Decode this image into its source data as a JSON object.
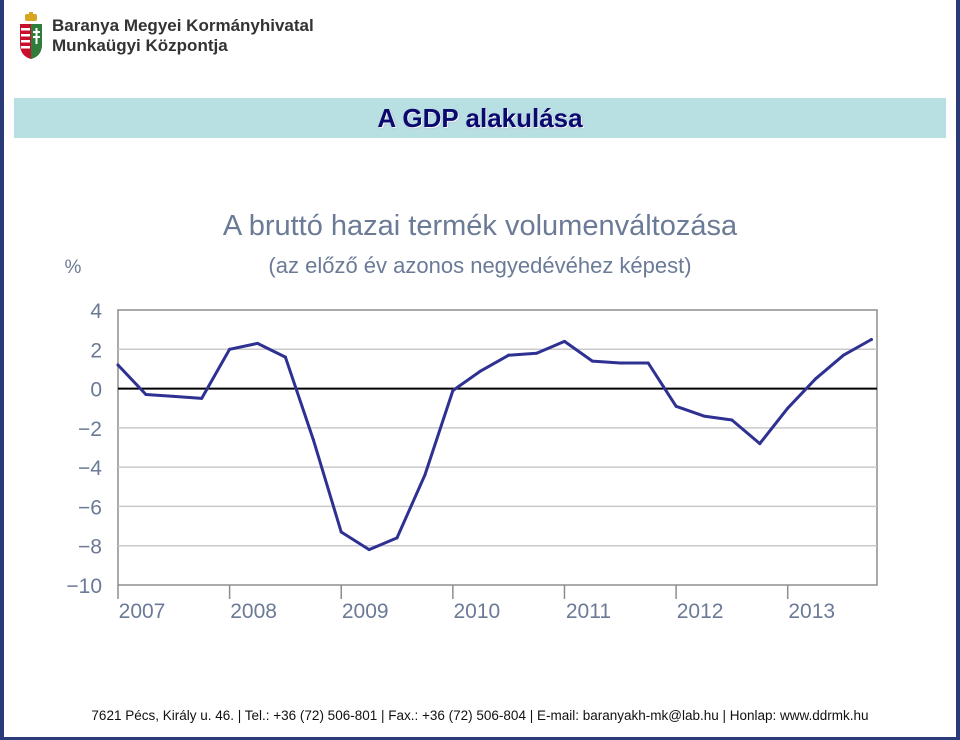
{
  "header": {
    "org_line1": "Baranya Megyei Kormányhivatal",
    "org_line2": "Munkaügyi Központja"
  },
  "slide": {
    "title": "A GDP alakulása"
  },
  "footer": {
    "contact": "7621 Pécs, Király u. 46. | Tel.: +36 (72) 506-801 | Fax.: +36 (72) 506-804 | E-mail: baranyakh-mk@lab.hu | Honlap: www.ddrmk.hu"
  },
  "colors": {
    "series_line": "#2e3192",
    "banner": "#b8e0e3",
    "title_text": "#0a0a6e",
    "frame": "#2b3a78",
    "chart_text": "#6b7a96"
  },
  "chart_data": {
    "type": "line",
    "title": "A bruttó hazai termék volumenváltozása",
    "subtitle": "(az előző év azonos negyedévéhez képest)",
    "ylabel": "%",
    "xlabel": "",
    "ylim": [
      -10,
      4
    ],
    "yticks": [
      4,
      2,
      0,
      -2,
      -4,
      -6,
      -8,
      -10
    ],
    "xlim": [
      2007,
      2013.8
    ],
    "xticks": [
      "2007",
      "2008",
      "2009",
      "2010",
      "2011",
      "2012",
      "2013"
    ],
    "grid": true,
    "x": [
      "2007 Q1",
      "2007 Q2",
      "2007 Q3",
      "2007 Q4",
      "2008 Q1",
      "2008 Q2",
      "2008 Q3",
      "2008 Q4",
      "2009 Q1",
      "2009 Q2",
      "2009 Q3",
      "2009 Q4",
      "2010 Q1",
      "2010 Q2",
      "2010 Q3",
      "2010 Q4",
      "2011 Q1",
      "2011 Q2",
      "2011 Q3",
      "2011 Q4",
      "2012 Q1",
      "2012 Q2",
      "2012 Q3",
      "2012 Q4",
      "2013 Q1",
      "2013 Q2",
      "2013 Q3",
      "2013 Q4"
    ],
    "series": [
      {
        "values": [
          1.2,
          -0.3,
          -0.4,
          -0.5,
          2.0,
          2.3,
          1.6,
          -2.6,
          -7.3,
          -8.2,
          -7.6,
          -4.4,
          -0.1,
          0.9,
          1.7,
          1.8,
          2.4,
          1.4,
          1.3,
          1.3,
          -0.9,
          -1.4,
          -1.6,
          -2.8,
          -1.0,
          0.5,
          1.7,
          2.5
        ]
      }
    ]
  }
}
